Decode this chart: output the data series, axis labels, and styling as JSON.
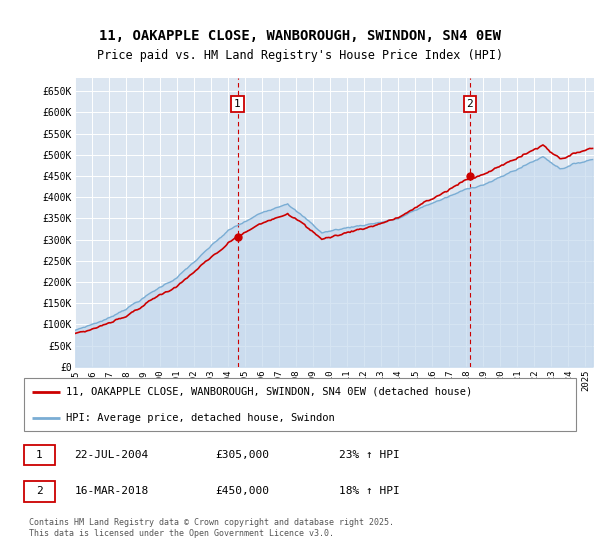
{
  "title": "11, OAKAPPLE CLOSE, WANBOROUGH, SWINDON, SN4 0EW",
  "subtitle": "Price paid vs. HM Land Registry's House Price Index (HPI)",
  "ylabel_ticks": [
    "£0",
    "£50K",
    "£100K",
    "£150K",
    "£200K",
    "£250K",
    "£300K",
    "£350K",
    "£400K",
    "£450K",
    "£500K",
    "£550K",
    "£600K",
    "£650K"
  ],
  "ytick_values": [
    0,
    50000,
    100000,
    150000,
    200000,
    250000,
    300000,
    350000,
    400000,
    450000,
    500000,
    550000,
    600000,
    650000
  ],
  "ylim": [
    0,
    680000
  ],
  "xlim_start": 1995.0,
  "xlim_end": 2025.5,
  "plot_bg_color": "#dce6f1",
  "annotation1": {
    "label": "1",
    "date_str": "22-JUL-2004",
    "value": 305000,
    "pct": "23%",
    "direction": "↑",
    "index_str": "HPI"
  },
  "annotation2": {
    "label": "2",
    "date_str": "16-MAR-2018",
    "value": 450000,
    "pct": "18%",
    "direction": "↑",
    "index_str": "HPI"
  },
  "legend_line1": "11, OAKAPPLE CLOSE, WANBOROUGH, SWINDON, SN4 0EW (detached house)",
  "legend_line2": "HPI: Average price, detached house, Swindon",
  "footer": "Contains HM Land Registry data © Crown copyright and database right 2025.\nThis data is licensed under the Open Government Licence v3.0.",
  "red_color": "#cc0000",
  "blue_color": "#7aadd4",
  "fill_blue": "#c5d9ed",
  "title_fontsize": 10,
  "subtitle_fontsize": 8.5,
  "ann1_x": 2004.55,
  "ann2_x": 2018.21,
  "ann1_sale_y": 305000,
  "ann2_sale_y": 450000,
  "xtick_years": [
    1995,
    1996,
    1997,
    1998,
    1999,
    2000,
    2001,
    2002,
    2003,
    2004,
    2005,
    2006,
    2007,
    2008,
    2009,
    2010,
    2011,
    2012,
    2013,
    2014,
    2015,
    2016,
    2017,
    2018,
    2019,
    2020,
    2021,
    2022,
    2023,
    2024,
    2025
  ]
}
